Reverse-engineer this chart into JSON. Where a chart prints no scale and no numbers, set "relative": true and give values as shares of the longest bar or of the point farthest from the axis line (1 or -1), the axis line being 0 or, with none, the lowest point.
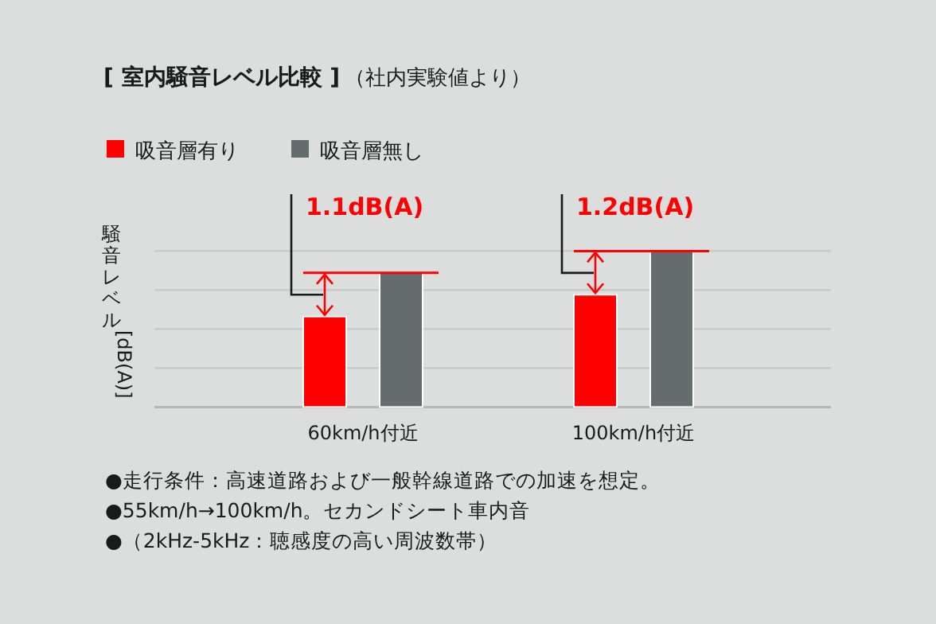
{
  "chart_data": {
    "type": "bar",
    "relative": true,
    "title": "[ 室内騒音レベル比較 ]",
    "subtitle": "（社内実験値より）",
    "ylabel": "騒音レベル[dB(A)]",
    "categories": [
      "60km/h付近",
      "100km/h付近"
    ],
    "series": [
      {
        "name": "吸音層有り",
        "color": "#ff0000",
        "values": [
          0.58,
          0.72
        ]
      },
      {
        "name": "吸音層無し",
        "color": "#666b6e",
        "values": [
          0.86,
          1.0
        ]
      }
    ],
    "legend": "top left",
    "grid": "y",
    "annotations": [
      "1.1dB(A)",
      "1.2dB(A)",
      "●走行条件：高速道路および一般幹線道路での加速を想定。",
      "●55km/h→100km/h。セカンドシート車内音",
      "●（2kHz-5kHz：聴感度の高い周波数帯）"
    ]
  }
}
